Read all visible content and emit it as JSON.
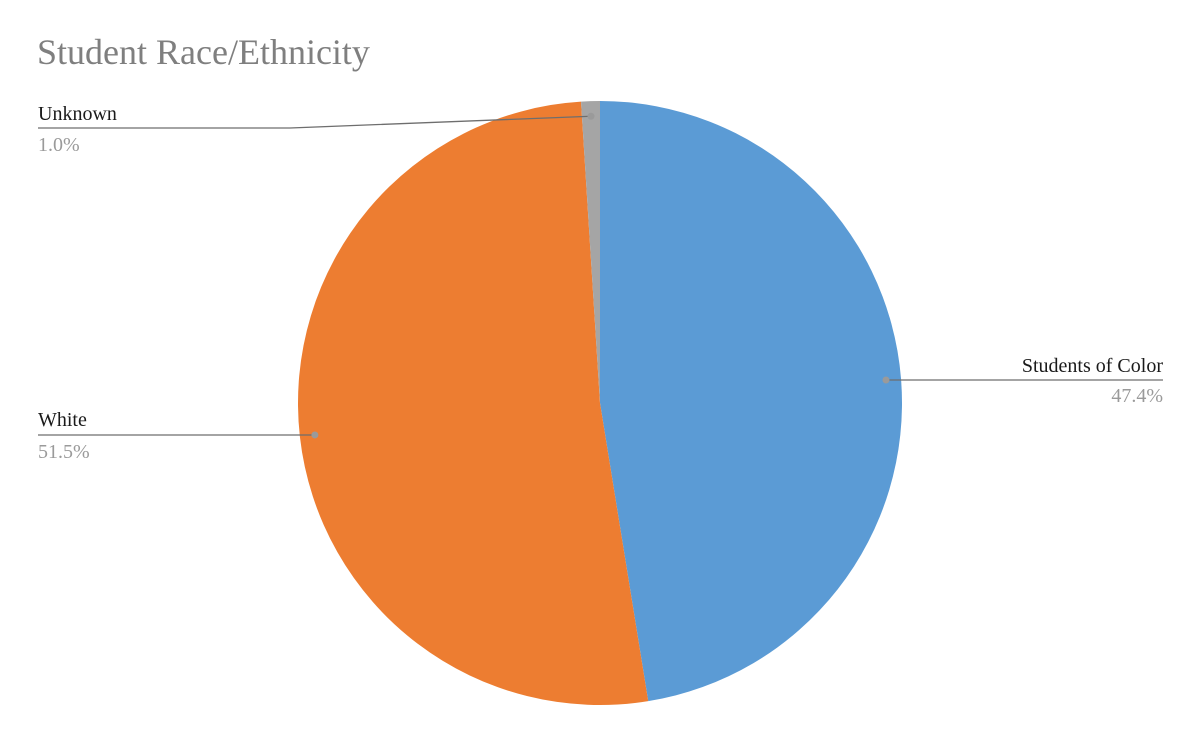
{
  "chart_data": {
    "type": "pie",
    "title": "Student Race/Ethnicity",
    "slices": [
      {
        "label": "Students of Color",
        "value": 47.4,
        "value_label": "47.4%",
        "color": "#5b9bd5"
      },
      {
        "label": "White",
        "value": 51.5,
        "value_label": "51.5%",
        "color": "#ed7d31"
      },
      {
        "label": "Unknown",
        "value": 1.0,
        "value_label": "1.0%",
        "color": "#a5a5a5"
      }
    ],
    "start": "top",
    "direction": "clockwise",
    "labels_outside": true,
    "legend": "none"
  }
}
